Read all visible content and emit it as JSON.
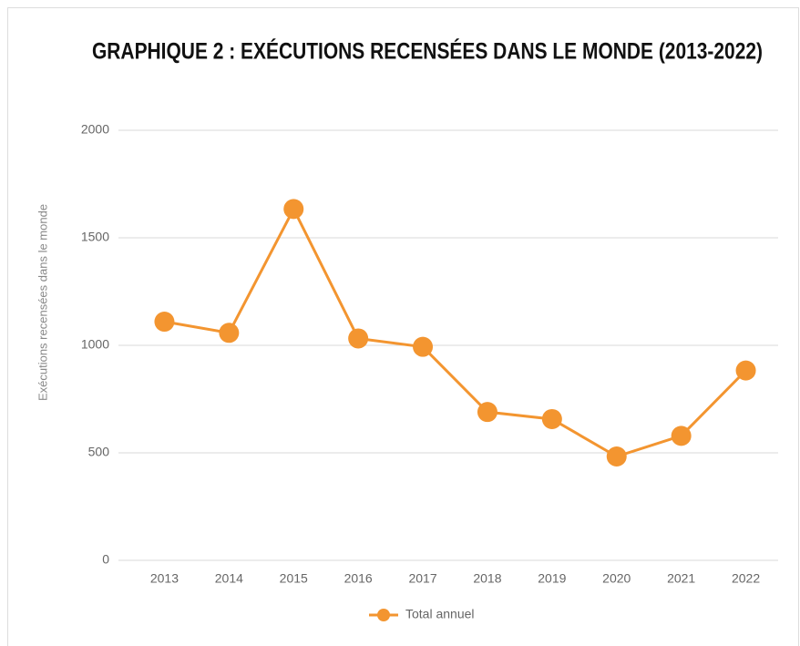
{
  "chart_data": {
    "type": "line",
    "title": "GRAPHIQUE 2 : EXÉCUTIONS RECENSÉES DANS LE MONDE (2013-2022)",
    "y_label": "Exécutions recensées dans le monde",
    "categories": [
      "2013",
      "2014",
      "2015",
      "2016",
      "2017",
      "2018",
      "2019",
      "2020",
      "2021",
      "2022"
    ],
    "series": [
      {
        "name": "Total annuel",
        "color": "#f39530",
        "values": [
          1110,
          1058,
          1634,
          1032,
          993,
          690,
          657,
          483,
          579,
          883
        ]
      }
    ],
    "ylim": [
      0,
      2000
    ],
    "yticks": [
      0,
      500,
      1000,
      1500,
      2000
    ],
    "grid": true,
    "legend": "bottom"
  }
}
